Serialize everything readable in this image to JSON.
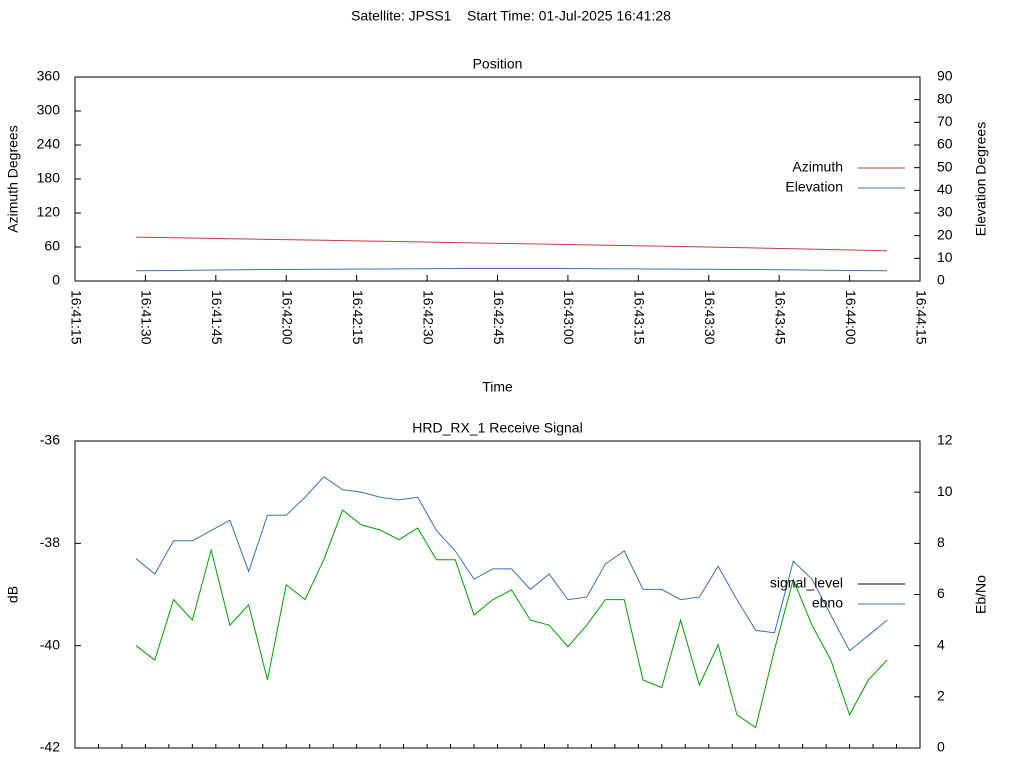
{
  "title": "Satellite: JPSS1    Start Time: 01-Jul-2025 16:41:28",
  "chart_data": [
    {
      "type": "line",
      "title": "Position",
      "x_label": "Time",
      "y_label": "Azimuth Degrees",
      "y2_label": "Elevation Degrees",
      "x": [
        "16:41:28",
        "16:41:38",
        "16:41:48",
        "16:41:58",
        "16:42:08",
        "16:42:18",
        "16:42:28",
        "16:42:38",
        "16:42:48",
        "16:42:58",
        "16:43:08",
        "16:43:18",
        "16:43:28",
        "16:43:38",
        "16:43:48",
        "16:43:58",
        "16:44:08"
      ],
      "series": [
        {
          "name": "Azimuth",
          "color": "#c04040",
          "values": [
            77.5,
            76,
            74.6,
            73.2,
            71.8,
            70.4,
            69,
            67.6,
            66.2,
            64.7,
            63.2,
            61.7,
            60.2,
            58.6,
            57,
            55.2,
            53.3
          ]
        },
        {
          "name": "Elevation",
          "color": "#3b6fb6",
          "axis": "y2",
          "values": [
            4.5,
            4.7,
            4.9,
            5.1,
            5.2,
            5.3,
            5.4,
            5.5,
            5.5,
            5.5,
            5.4,
            5.3,
            5.2,
            5.1,
            4.9,
            4.7,
            4.5
          ]
        }
      ],
      "xlim": [
        "16:41:15",
        "16:44:15"
      ],
      "xticks": [
        "16:41:15",
        "16:41:30",
        "16:41:45",
        "16:42:00",
        "16:42:15",
        "16:42:30",
        "16:42:45",
        "16:43:00",
        "16:43:15",
        "16:43:30",
        "16:43:45",
        "16:44:00",
        "16:44:15"
      ],
      "ylim": [
        0,
        360
      ],
      "yticks": [
        0,
        60,
        120,
        180,
        240,
        300,
        360
      ],
      "y2lim": [
        0,
        90
      ],
      "y2ticks": [
        0,
        10,
        20,
        30,
        40,
        50,
        60,
        70,
        80,
        90
      ],
      "legend": "right",
      "grid": false
    },
    {
      "type": "line",
      "title": "HRD_RX_1 Receive Signal",
      "y_label": "dB",
      "y2_label": "Eb/No",
      "x": [
        "16:41:28",
        "16:41:32",
        "16:41:36",
        "16:41:40",
        "16:41:44",
        "16:41:48",
        "16:41:52",
        "16:41:56",
        "16:42:00",
        "16:42:04",
        "16:42:08",
        "16:42:12",
        "16:42:16",
        "16:42:20",
        "16:42:24",
        "16:42:28",
        "16:42:32",
        "16:42:36",
        "16:42:40",
        "16:42:44",
        "16:42:48",
        "16:42:52",
        "16:42:56",
        "16:43:00",
        "16:43:04",
        "16:43:08",
        "16:43:12",
        "16:43:16",
        "16:43:20",
        "16:43:24",
        "16:43:28",
        "16:43:32",
        "16:43:36",
        "16:43:40",
        "16:43:44",
        "16:43:48",
        "16:43:52",
        "16:43:56",
        "16:44:00",
        "16:44:04",
        "16:44:08"
      ],
      "series": [
        {
          "name": "signal_level",
          "color": "#000000",
          "values": [
            null,
            null,
            null,
            null,
            null,
            null,
            null,
            null,
            null,
            null,
            null,
            null,
            null,
            null,
            null,
            null,
            null,
            null,
            null,
            null,
            null,
            null,
            null,
            null,
            null,
            null,
            null,
            null,
            null,
            null,
            null,
            null,
            null,
            null,
            null,
            null,
            null,
            null,
            null,
            null,
            null
          ]
        },
        {
          "name": "ebno",
          "color": "#3b6fb6",
          "axis": "y2",
          "values": [
            7.4,
            6.8,
            8.1,
            8.1,
            8.5,
            8.9,
            6.9,
            9.1,
            9.1,
            9.8,
            10.6,
            10.1,
            10.0,
            9.8,
            9.7,
            9.8,
            8.5,
            7.7,
            6.6,
            7.0,
            7.0,
            6.2,
            6.8,
            5.8,
            5.9,
            7.2,
            7.7,
            6.2,
            6.2,
            5.8,
            5.9,
            7.1,
            5.8,
            4.6,
            4.5,
            7.3,
            6.6,
            5.2,
            3.8,
            4.4,
            5.0
          ]
        },
        {
          "color": "#00a000",
          "values": [
            -40.0,
            -40.28,
            -39.1,
            -39.5,
            -38.13,
            -39.6,
            -39.2,
            -40.67,
            -38.81,
            -39.1,
            -38.32,
            -37.35,
            -37.64,
            -37.74,
            -37.93,
            -37.7,
            -38.32,
            -38.32,
            -39.4,
            -39.1,
            -38.91,
            -39.5,
            -39.6,
            -40.02,
            -39.6,
            -39.1,
            -39.1,
            -40.67,
            -40.82,
            -39.5,
            -40.77,
            -39.98,
            -41.35,
            -41.6,
            -40.08,
            -38.71,
            -39.6,
            -40.28,
            -41.35,
            -40.67,
            -40.28
          ]
        }
      ],
      "xlim": [
        "16:41:15",
        "16:44:15"
      ],
      "ylim": [
        -42,
        -36
      ],
      "yticks": [
        -42,
        -40,
        -38,
        -36
      ],
      "y2lim": [
        0,
        12
      ],
      "y2ticks": [
        0,
        2,
        4,
        6,
        8,
        10,
        12
      ],
      "legend": "right",
      "grid": false
    }
  ]
}
